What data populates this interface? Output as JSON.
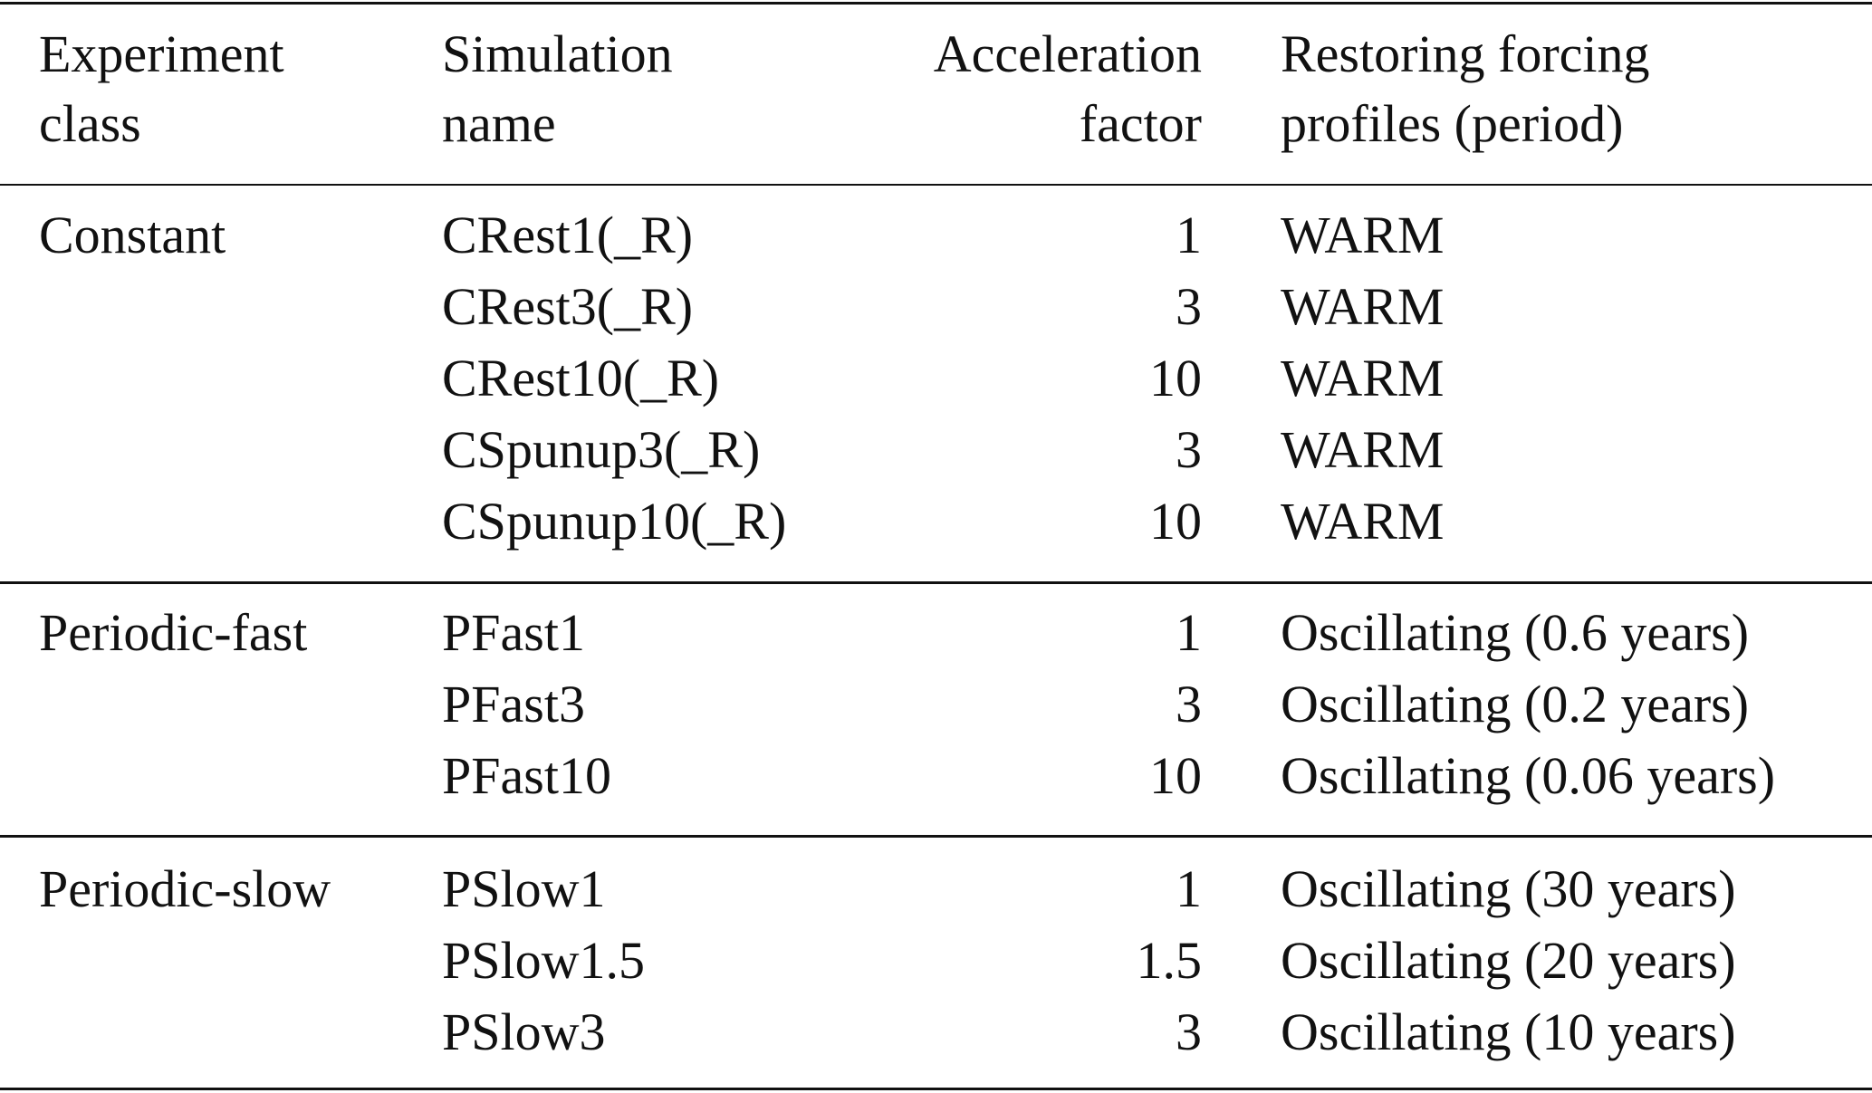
{
  "header": {
    "line1": [
      "Experiment",
      "Simulation",
      "Acceleration",
      "Restoring forcing"
    ],
    "line2": [
      "class",
      "name",
      "factor",
      "profiles (period)"
    ]
  },
  "sections": [
    {
      "class": "Constant",
      "rows": [
        {
          "name": "CRest1(_R)",
          "factor": "1",
          "profile": "WARM"
        },
        {
          "name": "CRest3(_R)",
          "factor": "3",
          "profile": "WARM"
        },
        {
          "name": "CRest10(_R)",
          "factor": "10",
          "profile": "WARM"
        },
        {
          "name": "CSpunup3(_R)",
          "factor": "3",
          "profile": "WARM"
        },
        {
          "name": "CSpunup10(_R)",
          "factor": "10",
          "profile": "WARM"
        }
      ]
    },
    {
      "class": "Periodic-fast",
      "rows": [
        {
          "name": "PFast1",
          "factor": "1",
          "profile": "Oscillating (0.6 years)"
        },
        {
          "name": "PFast3",
          "factor": "3",
          "profile": "Oscillating (0.2 years)"
        },
        {
          "name": "PFast10",
          "factor": "10",
          "profile": "Oscillating (0.06 years)"
        }
      ]
    },
    {
      "class": "Periodic-slow",
      "rows": [
        {
          "name": "PSlow1",
          "factor": "1",
          "profile": "Oscillating (30 years)"
        },
        {
          "name": "PSlow1.5",
          "factor": "1.5",
          "profile": "Oscillating (20 years)"
        },
        {
          "name": "PSlow3",
          "factor": "3",
          "profile": "Oscillating (10 years)"
        }
      ]
    }
  ]
}
